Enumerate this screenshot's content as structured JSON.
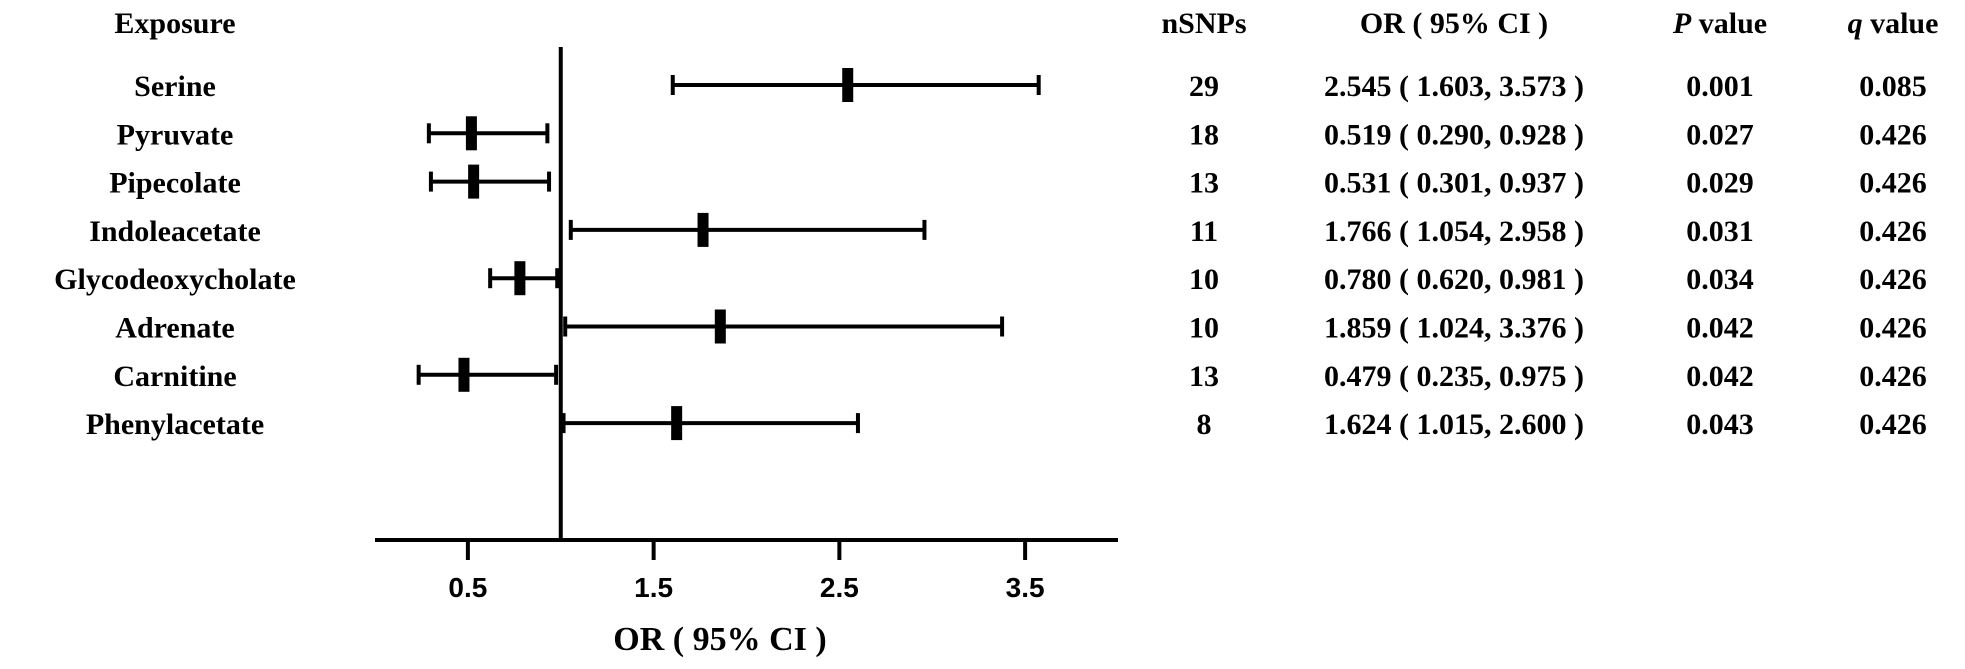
{
  "chart_data": {
    "type": "forest",
    "xlabel": "OR ( 95% CI )",
    "xlim": [
      0,
      4
    ],
    "xticks": [
      "0.5",
      "1.5",
      "2.5",
      "3.5"
    ],
    "reference_line": 1,
    "headers": {
      "exposure": "Exposure",
      "nsnps": "nSNPs",
      "or_ci": "OR ( 95% CI )",
      "p_italic": "P",
      "p_rest": " value",
      "q_italic": "q",
      "q_rest": " value"
    },
    "rows": [
      {
        "exposure": "Serine",
        "or": 2.545,
        "lo": 1.603,
        "hi": 3.573,
        "nsnps": "29",
        "or_text": "2.545 ( 1.603, 3.573 )",
        "p": "0.001",
        "q": "0.085"
      },
      {
        "exposure": "Pyruvate",
        "or": 0.519,
        "lo": 0.29,
        "hi": 0.928,
        "nsnps": "18",
        "or_text": "0.519 ( 0.290, 0.928 )",
        "p": "0.027",
        "q": "0.426"
      },
      {
        "exposure": "Pipecolate",
        "or": 0.531,
        "lo": 0.301,
        "hi": 0.937,
        "nsnps": "13",
        "or_text": "0.531 ( 0.301, 0.937 )",
        "p": "0.029",
        "q": "0.426"
      },
      {
        "exposure": "Indoleacetate",
        "or": 1.766,
        "lo": 1.054,
        "hi": 2.958,
        "nsnps": "11",
        "or_text": "1.766 ( 1.054, 2.958 )",
        "p": "0.031",
        "q": "0.426"
      },
      {
        "exposure": "Glycodeoxycholate",
        "or": 0.78,
        "lo": 0.62,
        "hi": 0.981,
        "nsnps": "10",
        "or_text": "0.780 ( 0.620, 0.981 )",
        "p": "0.034",
        "q": "0.426"
      },
      {
        "exposure": "Adrenate",
        "or": 1.859,
        "lo": 1.024,
        "hi": 3.376,
        "nsnps": "10",
        "or_text": "1.859 ( 1.024, 3.376 )",
        "p": "0.042",
        "q": "0.426"
      },
      {
        "exposure": "Carnitine",
        "or": 0.479,
        "lo": 0.235,
        "hi": 0.975,
        "nsnps": "13",
        "or_text": "0.479 ( 0.235, 0.975 )",
        "p": "0.042",
        "q": "0.426"
      },
      {
        "exposure": "Phenylacetate",
        "or": 1.624,
        "lo": 1.015,
        "hi": 2.6,
        "nsnps": "8",
        "or_text": "1.624 ( 1.015, 2.600 )",
        "p": "0.043",
        "q": "0.426"
      }
    ]
  }
}
